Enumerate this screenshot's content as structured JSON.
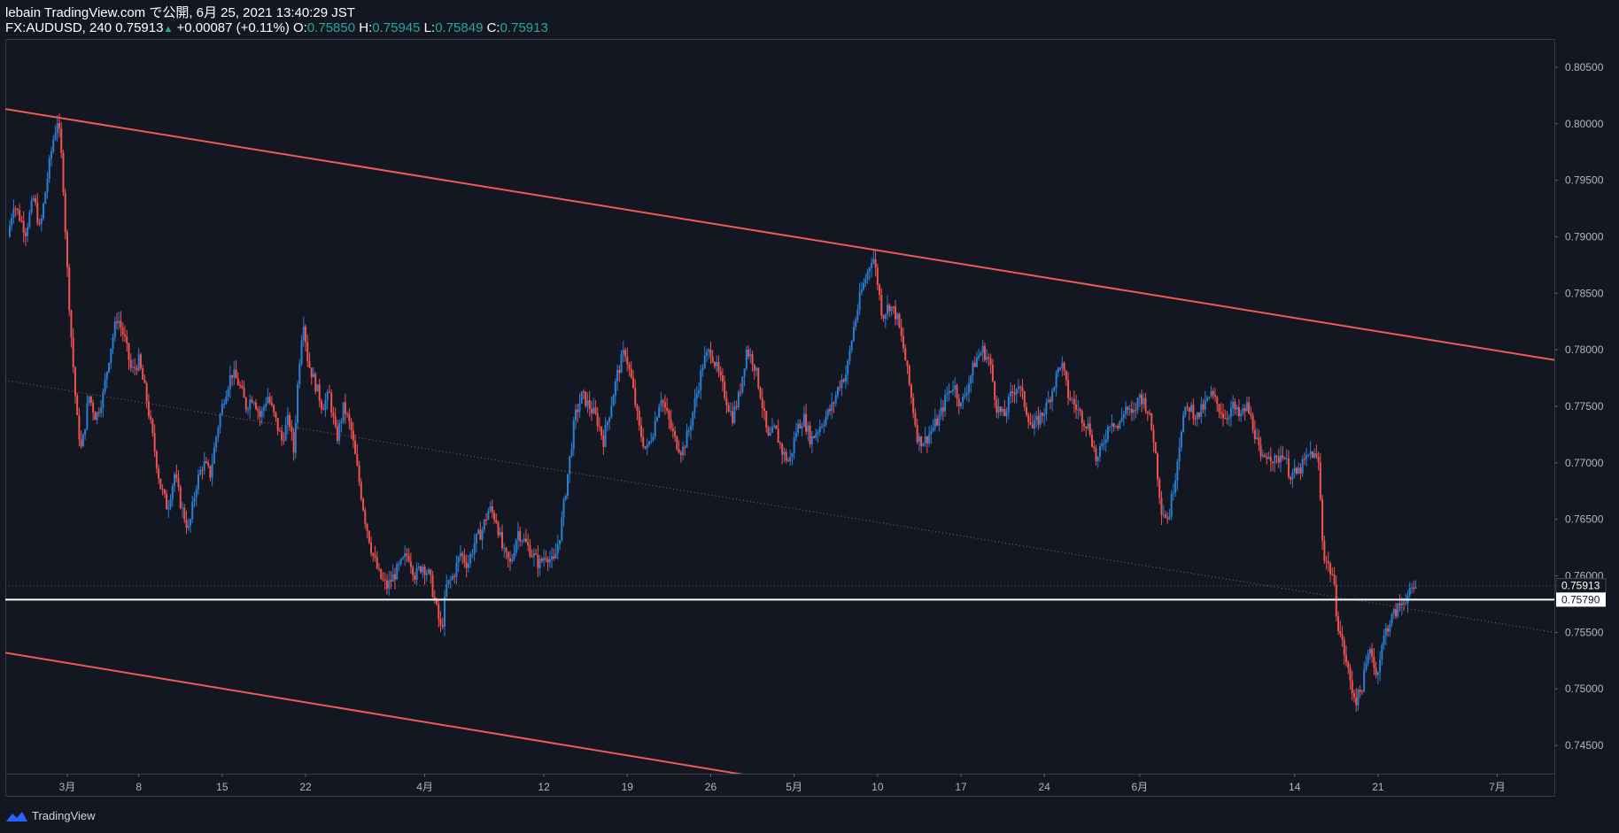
{
  "header": {
    "publish_line": "lebain TradingView.com で公開, 6月 25, 2021 13:40:29 JST",
    "symbol": "FX:AUDUSD, 240",
    "last": "0.75913",
    "change": "+0.00087 (+0.11%)",
    "o_label": "O:",
    "o_value": "0.75850",
    "h_label": "H:",
    "h_value": "0.75945",
    "l_label": "L:",
    "l_value": "0.75849",
    "c_label": "C:",
    "c_value": "0.75913"
  },
  "footer": {
    "brand": "TradingView"
  },
  "colors": {
    "background": "#131722",
    "up": "#2a7fd4",
    "down": "#ef5350",
    "trend": "#f05a54",
    "level": "#ffffff",
    "axis_text": "#b2b5be"
  },
  "chart_data": {
    "type": "candlestick",
    "y_ticks": [
      "0.80500",
      "0.80000",
      "0.79500",
      "0.79000",
      "0.78500",
      "0.78000",
      "0.77500",
      "0.77000",
      "0.76500",
      "0.76000",
      "0.75500",
      "0.75000",
      "0.74500"
    ],
    "ylim": [
      0.7425,
      0.8075
    ],
    "x_ticks": [
      {
        "label": "3月",
        "day": 2
      },
      {
        "label": "8",
        "day": 8
      },
      {
        "label": "15",
        "day": 15
      },
      {
        "label": "22",
        "day": 22
      },
      {
        "label": "4月",
        "day": 32
      },
      {
        "label": "12",
        "day": 42
      },
      {
        "label": "19",
        "day": 49
      },
      {
        "label": "26",
        "day": 56
      },
      {
        "label": "5月",
        "day": 63
      },
      {
        "label": "10",
        "day": 70
      },
      {
        "label": "17",
        "day": 77
      },
      {
        "label": "24",
        "day": 84
      },
      {
        "label": "6月",
        "day": 92
      },
      {
        "label": "14",
        "day": 105
      },
      {
        "label": "21",
        "day": 112
      },
      {
        "label": "7月",
        "day": 122
      }
    ],
    "x_range_days": [
      -3.2,
      126.8
    ],
    "price_path": [
      [
        -3,
        0.79
      ],
      [
        -2.5,
        0.793
      ],
      [
        -1.5,
        0.7905
      ],
      [
        -0.8,
        0.7935
      ],
      [
        -0.3,
        0.7905
      ],
      [
        0.3,
        0.795
      ],
      [
        0.8,
        0.7985
      ],
      [
        1.2,
        0.8005
      ],
      [
        1.6,
        0.796
      ],
      [
        2,
        0.787
      ],
      [
        2.4,
        0.78
      ],
      [
        2.8,
        0.774
      ],
      [
        3.2,
        0.771
      ],
      [
        3.8,
        0.776
      ],
      [
        4.4,
        0.774
      ],
      [
        5,
        0.776
      ],
      [
        5.6,
        0.78
      ],
      [
        6.2,
        0.783
      ],
      [
        6.8,
        0.781
      ],
      [
        7.4,
        0.778
      ],
      [
        8,
        0.779
      ],
      [
        8.6,
        0.776
      ],
      [
        9.2,
        0.772
      ],
      [
        9.8,
        0.768
      ],
      [
        10.4,
        0.766
      ],
      [
        11,
        0.769
      ],
      [
        11.6,
        0.766
      ],
      [
        12.2,
        0.764
      ],
      [
        12.8,
        0.768
      ],
      [
        13.4,
        0.77
      ],
      [
        14,
        0.769
      ],
      [
        14.6,
        0.773
      ],
      [
        15.2,
        0.776
      ],
      [
        15.8,
        0.778
      ],
      [
        16.4,
        0.777
      ],
      [
        17,
        0.775
      ],
      [
        17.6,
        0.776
      ],
      [
        18.2,
        0.774
      ],
      [
        18.8,
        0.776
      ],
      [
        19.4,
        0.774
      ],
      [
        20,
        0.772
      ],
      [
        20.6,
        0.774
      ],
      [
        21,
        0.771
      ],
      [
        21.4,
        0.778
      ],
      [
        21.8,
        0.783
      ],
      [
        22.2,
        0.779
      ],
      [
        22.8,
        0.777
      ],
      [
        23.4,
        0.775
      ],
      [
        24,
        0.776
      ],
      [
        24.6,
        0.772
      ],
      [
        25.2,
        0.775
      ],
      [
        25.8,
        0.773
      ],
      [
        26.4,
        0.769
      ],
      [
        27,
        0.765
      ],
      [
        27.6,
        0.762
      ],
      [
        28.2,
        0.76
      ],
      [
        28.8,
        0.759
      ],
      [
        29.4,
        0.76
      ],
      [
        30,
        0.761
      ],
      [
        30.6,
        0.762
      ],
      [
        31.2,
        0.76
      ],
      [
        31.8,
        0.761
      ],
      [
        32.4,
        0.76
      ],
      [
        33,
        0.757
      ],
      [
        33.4,
        0.755
      ],
      [
        33.8,
        0.759
      ],
      [
        34.4,
        0.76
      ],
      [
        35,
        0.762
      ],
      [
        35.6,
        0.761
      ],
      [
        36.2,
        0.763
      ],
      [
        36.8,
        0.764
      ],
      [
        37.4,
        0.766
      ],
      [
        38,
        0.765
      ],
      [
        38.6,
        0.762
      ],
      [
        39.2,
        0.761
      ],
      [
        39.8,
        0.764
      ],
      [
        40.4,
        0.763
      ],
      [
        41,
        0.762
      ],
      [
        41.6,
        0.761
      ],
      [
        42.2,
        0.762
      ],
      [
        42.8,
        0.761
      ],
      [
        43.4,
        0.764
      ],
      [
        44,
        0.769
      ],
      [
        44.6,
        0.774
      ],
      [
        45.2,
        0.776
      ],
      [
        45.8,
        0.775
      ],
      [
        46.4,
        0.774
      ],
      [
        47,
        0.772
      ],
      [
        47.6,
        0.775
      ],
      [
        48.2,
        0.778
      ],
      [
        48.8,
        0.78
      ],
      [
        49.4,
        0.777
      ],
      [
        50,
        0.773
      ],
      [
        50.6,
        0.771
      ],
      [
        51.2,
        0.773
      ],
      [
        51.8,
        0.776
      ],
      [
        52.4,
        0.774
      ],
      [
        53,
        0.772
      ],
      [
        53.6,
        0.771
      ],
      [
        54.2,
        0.773
      ],
      [
        54.8,
        0.776
      ],
      [
        55.4,
        0.779
      ],
      [
        56,
        0.78
      ],
      [
        56.6,
        0.778
      ],
      [
        57.2,
        0.776
      ],
      [
        57.8,
        0.774
      ],
      [
        58.4,
        0.776
      ],
      [
        59,
        0.78
      ],
      [
        59.6,
        0.779
      ],
      [
        60.2,
        0.776
      ],
      [
        60.8,
        0.772
      ],
      [
        61.4,
        0.773
      ],
      [
        62,
        0.771
      ],
      [
        62.6,
        0.77
      ],
      [
        63.2,
        0.773
      ],
      [
        63.8,
        0.774
      ],
      [
        64.4,
        0.772
      ],
      [
        65,
        0.773
      ],
      [
        65.6,
        0.774
      ],
      [
        66.2,
        0.775
      ],
      [
        66.8,
        0.777
      ],
      [
        67.4,
        0.778
      ],
      [
        68,
        0.782
      ],
      [
        68.6,
        0.785
      ],
      [
        69.2,
        0.787
      ],
      [
        69.6,
        0.7885
      ],
      [
        70,
        0.786
      ],
      [
        70.4,
        0.783
      ],
      [
        71,
        0.784
      ],
      [
        71.6,
        0.783
      ],
      [
        72.2,
        0.78
      ],
      [
        72.8,
        0.776
      ],
      [
        73.4,
        0.772
      ],
      [
        74,
        0.772
      ],
      [
        74.6,
        0.773
      ],
      [
        75.2,
        0.774
      ],
      [
        75.8,
        0.776
      ],
      [
        76.4,
        0.777
      ],
      [
        77,
        0.775
      ],
      [
        77.6,
        0.777
      ],
      [
        78.2,
        0.779
      ],
      [
        78.8,
        0.78
      ],
      [
        79.4,
        0.779
      ],
      [
        80,
        0.775
      ],
      [
        80.6,
        0.774
      ],
      [
        81.2,
        0.776
      ],
      [
        81.8,
        0.777
      ],
      [
        82.4,
        0.775
      ],
      [
        83,
        0.773
      ],
      [
        83.6,
        0.774
      ],
      [
        84.2,
        0.775
      ],
      [
        84.8,
        0.777
      ],
      [
        85.4,
        0.779
      ],
      [
        86,
        0.776
      ],
      [
        86.6,
        0.775
      ],
      [
        87.2,
        0.774
      ],
      [
        87.8,
        0.773
      ],
      [
        88.4,
        0.77
      ],
      [
        89,
        0.772
      ],
      [
        89.6,
        0.774
      ],
      [
        90.2,
        0.773
      ],
      [
        90.8,
        0.775
      ],
      [
        91.4,
        0.774
      ],
      [
        92,
        0.776
      ],
      [
        92.6,
        0.775
      ],
      [
        93.2,
        0.772
      ],
      [
        93.8,
        0.766
      ],
      [
        94.4,
        0.765
      ],
      [
        95,
        0.769
      ],
      [
        95.6,
        0.774
      ],
      [
        96.2,
        0.775
      ],
      [
        96.8,
        0.774
      ],
      [
        97.4,
        0.775
      ],
      [
        98,
        0.776
      ],
      [
        98.6,
        0.775
      ],
      [
        99.2,
        0.774
      ],
      [
        99.8,
        0.775
      ],
      [
        100.4,
        0.774
      ],
      [
        101,
        0.775
      ],
      [
        101.6,
        0.773
      ],
      [
        102.2,
        0.77
      ],
      [
        102.8,
        0.771
      ],
      [
        103.4,
        0.77
      ],
      [
        104,
        0.771
      ],
      [
        104.6,
        0.769
      ],
      [
        105.2,
        0.769
      ],
      [
        105.8,
        0.77
      ],
      [
        106.4,
        0.771
      ],
      [
        107,
        0.77
      ],
      [
        107.4,
        0.762
      ],
      [
        107.8,
        0.761
      ],
      [
        108.2,
        0.76
      ],
      [
        108.6,
        0.756
      ],
      [
        109,
        0.754
      ],
      [
        109.4,
        0.752
      ],
      [
        109.8,
        0.75
      ],
      [
        110.2,
        0.749
      ],
      [
        110.6,
        0.75
      ],
      [
        111,
        0.752
      ],
      [
        111.4,
        0.754
      ],
      [
        111.8,
        0.751
      ],
      [
        112.2,
        0.753
      ],
      [
        112.6,
        0.755
      ],
      [
        113,
        0.756
      ],
      [
        113.6,
        0.757
      ],
      [
        114.2,
        0.758
      ],
      [
        114.8,
        0.7585
      ],
      [
        115.2,
        0.7591
      ]
    ],
    "trend_upper": {
      "from": [
        -3.2,
        0.8013
      ],
      "to": [
        126.8,
        0.7791
      ]
    },
    "trend_lower": {
      "from": [
        -3.2,
        0.7532
      ],
      "to": [
        60,
        0.7422
      ]
    },
    "trend_mid": {
      "from": [
        -3.2,
        0.7773
      ],
      "to": [
        126.8,
        0.755
      ]
    },
    "horizontal_level": 0.7579,
    "price_labels": {
      "last": "0.75913",
      "level": "0.75790"
    }
  }
}
